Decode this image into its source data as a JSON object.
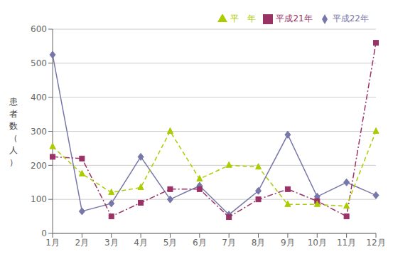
{
  "chart_data": {
    "type": "line",
    "ylabel": "患\n者\n数\n（\n人\n）",
    "categories": [
      "1月",
      "2月",
      "3月",
      "4月",
      "5月",
      "6月",
      "7月",
      "8月",
      "9月",
      "10月",
      "11月",
      "12月"
    ],
    "series": [
      {
        "name": "平成22年",
        "color": "#7777aa",
        "marker": "diamond",
        "line_style": "solid",
        "values": [
          525,
          65,
          88,
          225,
          100,
          140,
          55,
          125,
          290,
          108,
          150,
          112
        ]
      },
      {
        "name": "平成21年",
        "color": "#993366",
        "marker": "square",
        "line_style": "dashdot",
        "values": [
          225,
          220,
          50,
          90,
          130,
          130,
          48,
          100,
          130,
          95,
          50,
          560
        ]
      },
      {
        "name": "平　年",
        "color": "#aacc00",
        "marker": "triangle",
        "line_style": "dashed",
        "values": [
          255,
          175,
          120,
          135,
          300,
          160,
          200,
          195,
          85,
          85,
          80,
          300
        ]
      }
    ],
    "ylim": [
      0,
      600
    ],
    "yticks": [
      0,
      100,
      200,
      300,
      400,
      500,
      600
    ],
    "grid": "y",
    "legend": "upper right"
  }
}
